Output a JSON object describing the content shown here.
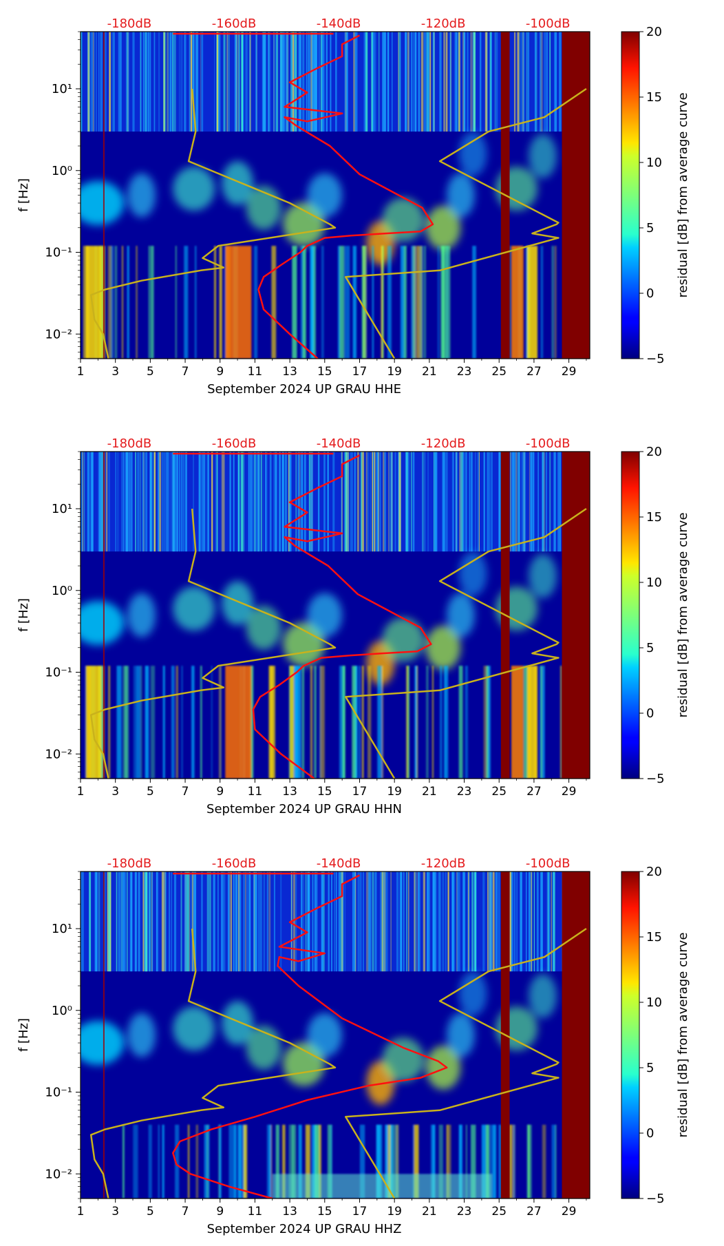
{
  "chart_data": [
    {
      "type": "heatmap",
      "title": "September 2024 UP GRAU  HHE",
      "xlabel": "September 2024 UP GRAU  HHE",
      "ylabel": "f [Hz]",
      "x_ticks": [
        "1",
        "3",
        "5",
        "7",
        "9",
        "11",
        "13",
        "15",
        "17",
        "19",
        "21",
        "23",
        "25",
        "27",
        "29"
      ],
      "xlim": [
        1,
        30.2
      ],
      "ylim": [
        0.005,
        50
      ],
      "y_ticks": [
        {
          "label": "10⁻²",
          "value": 0.01
        },
        {
          "label": "10⁻¹",
          "value": 0.1
        },
        {
          "label": "10⁰",
          "value": 1
        },
        {
          "label": "10¹",
          "value": 10
        }
      ],
      "top_ticks": [
        "-180dB",
        "-160dB",
        "-140dB",
        "-120dB",
        "-100dB"
      ],
      "colorbar": {
        "label": "residual [dB] from average curve",
        "ticks": [
          "−5",
          "0",
          "5",
          "10",
          "15",
          "20"
        ],
        "range": [
          -5,
          20
        ]
      },
      "model_curves": [
        {
          "name": "low noise model",
          "x": [
            2.6,
            2.3,
            1.8,
            1.6,
            2.4,
            4.5,
            7.9,
            9.2,
            8.0,
            8.9,
            15.6,
            15.3,
            13.0,
            7.2,
            7.6,
            7.4
          ],
          "y": [
            0.005,
            0.01,
            0.015,
            0.03,
            0.035,
            0.045,
            0.06,
            0.065,
            0.085,
            0.12,
            0.2,
            0.22,
            0.4,
            1.3,
            3.0,
            10
          ]
        },
        {
          "name": "high noise model",
          "x": [
            19.0,
            16.2,
            21.6,
            28.4,
            26.9,
            28.3,
            28.4,
            21.6,
            24.4,
            27.6,
            30.0
          ],
          "y": [
            0.005,
            0.05,
            0.06,
            0.15,
            0.17,
            0.22,
            0.23,
            1.3,
            3.0,
            4.5,
            10
          ]
        }
      ],
      "average_curve": {
        "name": "average PSD",
        "x": [
          14.6,
          13.0,
          11.5,
          11.2,
          11.5,
          12.5,
          13.6,
          14.0,
          15.0,
          16.5,
          18.5,
          20.5,
          21.2,
          20.6,
          17.0,
          15.3,
          13.4,
          12.7,
          14.0,
          16.0,
          12.7,
          14.0,
          13.0,
          14.6,
          16.0,
          16.0,
          17.0
        ],
        "y": [
          0.005,
          0.01,
          0.02,
          0.035,
          0.05,
          0.07,
          0.1,
          0.12,
          0.15,
          0.16,
          0.17,
          0.18,
          0.22,
          0.35,
          0.9,
          2.0,
          3.5,
          4.5,
          4.0,
          5.0,
          6.0,
          9.0,
          12,
          18,
          25,
          35,
          45
        ]
      }
    },
    {
      "type": "heatmap",
      "title": "September 2024 UP GRAU  HHN",
      "xlabel": "September 2024 UP GRAU  HHN",
      "ylabel": "f [Hz]",
      "x_ticks": [
        "1",
        "3",
        "5",
        "7",
        "9",
        "11",
        "13",
        "15",
        "17",
        "19",
        "21",
        "23",
        "25",
        "27",
        "29"
      ],
      "xlim": [
        1,
        30.2
      ],
      "ylim": [
        0.005,
        50
      ],
      "y_ticks": [
        {
          "label": "10⁻²",
          "value": 0.01
        },
        {
          "label": "10⁻¹",
          "value": 0.1
        },
        {
          "label": "10⁰",
          "value": 1
        },
        {
          "label": "10¹",
          "value": 10
        }
      ],
      "top_ticks": [
        "-180dB",
        "-160dB",
        "-140dB",
        "-120dB",
        "-100dB"
      ],
      "colorbar": {
        "label": "residual [dB] from average curve",
        "ticks": [
          "−5",
          "0",
          "5",
          "10",
          "15",
          "20"
        ],
        "range": [
          -5,
          20
        ]
      },
      "model_curves": [
        {
          "name": "low noise model",
          "x": [
            2.6,
            2.3,
            1.8,
            1.6,
            2.4,
            4.5,
            7.9,
            9.2,
            8.0,
            8.9,
            15.6,
            15.3,
            13.0,
            7.2,
            7.6,
            7.4
          ],
          "y": [
            0.005,
            0.01,
            0.015,
            0.03,
            0.035,
            0.045,
            0.06,
            0.065,
            0.085,
            0.12,
            0.2,
            0.22,
            0.4,
            1.3,
            3.0,
            10
          ]
        },
        {
          "name": "high noise model",
          "x": [
            19.0,
            16.2,
            21.6,
            28.4,
            26.9,
            28.3,
            28.4,
            21.6,
            24.4,
            27.6,
            30.0
          ],
          "y": [
            0.005,
            0.05,
            0.06,
            0.15,
            0.17,
            0.22,
            0.23,
            1.3,
            3.0,
            4.5,
            10
          ]
        }
      ],
      "average_curve": {
        "name": "average PSD",
        "x": [
          14.4,
          12.5,
          11.0,
          10.9,
          11.3,
          12.4,
          13.4,
          13.8,
          14.8,
          16.4,
          18.3,
          20.3,
          21.1,
          20.5,
          16.9,
          15.2,
          13.3,
          12.7,
          14.0,
          16.0,
          12.7,
          14.0,
          13.0,
          14.6,
          16.0,
          16.0,
          17.0
        ],
        "y": [
          0.005,
          0.01,
          0.02,
          0.035,
          0.05,
          0.07,
          0.1,
          0.12,
          0.15,
          0.16,
          0.17,
          0.18,
          0.22,
          0.35,
          0.9,
          2.0,
          3.5,
          4.5,
          4.0,
          5.0,
          6.0,
          9.0,
          12,
          18,
          25,
          35,
          45
        ]
      }
    },
    {
      "type": "heatmap",
      "title": "September 2024 UP GRAU  HHZ",
      "xlabel": "September 2024 UP GRAU  HHZ",
      "ylabel": "f [Hz]",
      "x_ticks": [
        "1",
        "3",
        "5",
        "7",
        "9",
        "11",
        "13",
        "15",
        "17",
        "19",
        "21",
        "23",
        "25",
        "27",
        "29"
      ],
      "xlim": [
        1,
        30.2
      ],
      "ylim": [
        0.005,
        50
      ],
      "y_ticks": [
        {
          "label": "10⁻²",
          "value": 0.01
        },
        {
          "label": "10⁻¹",
          "value": 0.1
        },
        {
          "label": "10⁰",
          "value": 1
        },
        {
          "label": "10¹",
          "value": 10
        }
      ],
      "top_ticks": [
        "-180dB",
        "-160dB",
        "-140dB",
        "-120dB",
        "-100dB"
      ],
      "colorbar": {
        "label": "residual [dB] from average curve",
        "ticks": [
          "−5",
          "0",
          "5",
          "10",
          "15",
          "20"
        ],
        "range": [
          -5,
          20
        ]
      },
      "model_curves": [
        {
          "name": "low noise model",
          "x": [
            2.6,
            2.3,
            1.8,
            1.6,
            2.4,
            4.5,
            7.9,
            9.2,
            8.0,
            8.9,
            15.6,
            15.3,
            13.0,
            7.2,
            7.6,
            7.4
          ],
          "y": [
            0.005,
            0.01,
            0.015,
            0.03,
            0.035,
            0.045,
            0.06,
            0.065,
            0.085,
            0.12,
            0.2,
            0.22,
            0.4,
            1.3,
            3.0,
            10
          ]
        },
        {
          "name": "high noise model",
          "x": [
            19.0,
            16.2,
            21.6,
            28.4,
            26.9,
            28.3,
            28.4,
            21.6,
            24.4,
            27.6,
            30.0
          ],
          "y": [
            0.005,
            0.05,
            0.06,
            0.15,
            0.17,
            0.22,
            0.23,
            1.3,
            3.0,
            4.5,
            10
          ]
        }
      ],
      "average_curve": {
        "name": "average PSD",
        "x": [
          12.0,
          9.5,
          7.3,
          6.5,
          6.3,
          6.7,
          8.5,
          11.0,
          14.0,
          17.5,
          20.5,
          22.0,
          21.5,
          19.5,
          16.0,
          13.5,
          12.3,
          12.4,
          13.5,
          15.0,
          12.4,
          14.0,
          13.0,
          14.6,
          16.0,
          16.0,
          17.0
        ],
        "y": [
          0.005,
          0.007,
          0.01,
          0.013,
          0.018,
          0.025,
          0.035,
          0.05,
          0.08,
          0.12,
          0.15,
          0.2,
          0.24,
          0.35,
          0.8,
          2.0,
          3.5,
          4.5,
          4.0,
          5.0,
          6.0,
          9.0,
          12,
          18,
          25,
          35,
          45
        ]
      }
    }
  ],
  "colors": {
    "top_tick_text": "#e41a1c",
    "average_curve": "#ff1010",
    "model_curve": "#c9b21c",
    "saturated_bar": "#800000"
  }
}
